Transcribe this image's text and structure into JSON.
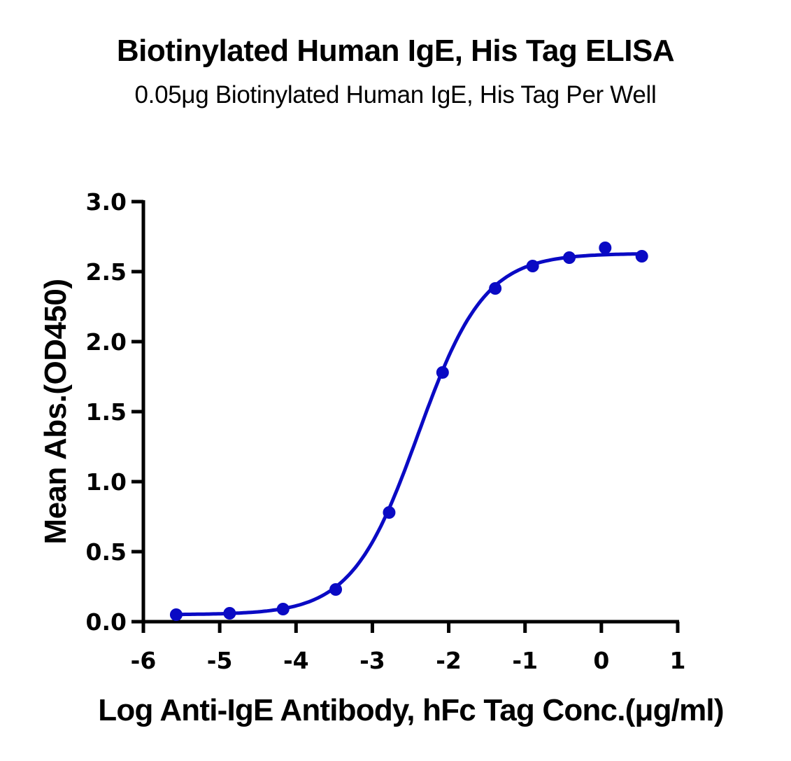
{
  "chart": {
    "title": "Biotinylated Human IgE, His Tag ELISA",
    "subtitle": "0.05μg Biotinylated Human IgE, His Tag Per Well",
    "xlabel": "Log Anti-IgE Antibody, hFc Tag Conc.(μg/ml)",
    "ylabel": "Mean Abs.(OD450)",
    "series_color": "#0A0AC4"
  },
  "chart_data": {
    "type": "scatter",
    "title": "Biotinylated Human IgE, His Tag ELISA",
    "subtitle": "0.05μg Biotinylated Human IgE, His Tag Per Well",
    "xlabel": "Log Anti-IgE Antibody, hFc Tag Conc.(μg/ml)",
    "ylabel": "Mean Abs.(OD450)",
    "xlim": [
      -6,
      1
    ],
    "ylim": [
      0,
      3.0
    ],
    "x_ticks": [
      -6,
      -5,
      -4,
      -3,
      -2,
      -1,
      0,
      1
    ],
    "y_ticks": [
      "0.0",
      "0.5",
      "1.0",
      "1.5",
      "2.0",
      "2.5",
      "3.0"
    ],
    "grid": false,
    "legend": null,
    "series": [
      {
        "name": "Biotinylated Human IgE, His Tag",
        "x": [
          -5.57,
          -4.87,
          -4.17,
          -3.48,
          -2.78,
          -2.08,
          -1.39,
          -0.9,
          -0.42,
          0.05,
          0.53
        ],
        "y": [
          0.05,
          0.06,
          0.09,
          0.23,
          0.78,
          1.78,
          2.38,
          2.54,
          2.6,
          2.67,
          2.61
        ]
      }
    ],
    "fit": {
      "model": "4PL",
      "bottom": 0.05,
      "top": 2.63,
      "log_ec50": -2.4,
      "hill": 1.0,
      "x_range": [
        -5.57,
        0.53
      ]
    }
  }
}
